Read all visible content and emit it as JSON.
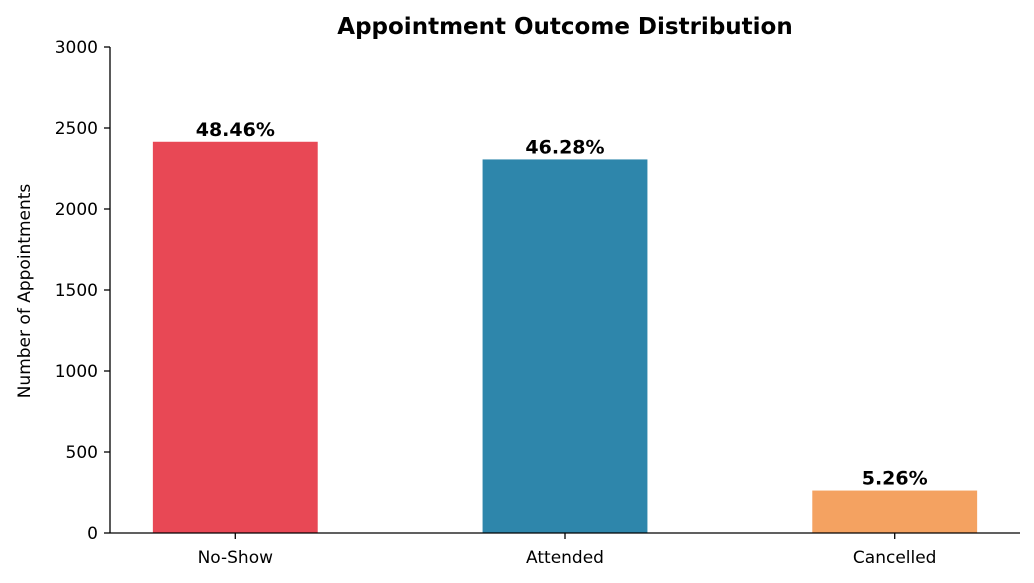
{
  "chart_data": {
    "type": "bar",
    "title": "Appointment Outcome Distribution",
    "xlabel": "",
    "ylabel": "Number of Appointments",
    "categories": [
      "No-Show",
      "Attended",
      "Cancelled"
    ],
    "values": [
      2415,
      2306,
      262
    ],
    "data_labels": [
      "48.46%",
      "46.28%",
      "5.26%"
    ],
    "colors": [
      "#E84855",
      "#2E86AB",
      "#F4A261"
    ],
    "ylim": [
      0,
      3000
    ],
    "yticks": [
      "0",
      "500",
      "1000",
      "1500",
      "2000",
      "2500",
      "3000"
    ],
    "grid": false,
    "legend": "none"
  }
}
